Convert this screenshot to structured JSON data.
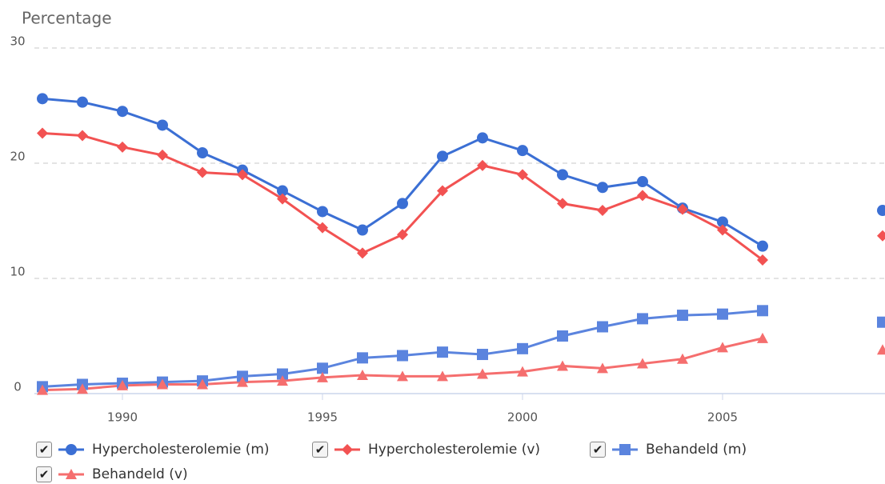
{
  "chart_data": {
    "type": "line",
    "ylabel": "Percentage",
    "x": [
      1988,
      1989,
      1990,
      1991,
      1992,
      1993,
      1994,
      1995,
      1996,
      1997,
      1998,
      1999,
      2000,
      2001,
      2002,
      2003,
      2004,
      2005,
      2006,
      2007,
      2008,
      2009
    ],
    "xlim": [
      1987.8,
      2009
    ],
    "xticks": [
      1990,
      1995,
      2000,
      2005
    ],
    "ylim": [
      0,
      30
    ],
    "yticks": [
      0,
      10,
      20,
      30
    ],
    "grid": true,
    "series": [
      {
        "name": "Hypercholesterolemie (m)",
        "color": "#3b6fd4",
        "marker": "circle",
        "values": [
          25.6,
          25.3,
          24.5,
          23.3,
          20.9,
          19.4,
          17.6,
          15.8,
          14.2,
          16.5,
          20.6,
          22.2,
          21.1,
          19.0,
          17.9,
          18.4,
          16.1,
          14.9,
          12.8,
          null,
          null,
          15.9
        ]
      },
      {
        "name": "Hypercholesterolemie (v)",
        "color": "#f25252",
        "marker": "diamond",
        "values": [
          22.6,
          22.4,
          21.4,
          20.7,
          19.2,
          19.0,
          16.9,
          14.4,
          12.2,
          13.8,
          17.6,
          19.8,
          19.0,
          16.5,
          15.9,
          17.2,
          16.0,
          14.2,
          11.6,
          null,
          null,
          13.7
        ]
      },
      {
        "name": "Behandeld (m)",
        "color": "#5b84de",
        "marker": "square",
        "values": [
          0.6,
          0.8,
          0.9,
          1.0,
          1.1,
          1.5,
          1.7,
          2.2,
          3.1,
          3.3,
          3.6,
          3.4,
          3.9,
          5.0,
          5.8,
          6.5,
          6.8,
          6.9,
          7.2,
          null,
          null,
          6.2
        ]
      },
      {
        "name": "Behandeld (v)",
        "color": "#f56e6e",
        "marker": "triangle",
        "values": [
          0.3,
          0.4,
          0.7,
          0.8,
          0.8,
          1.0,
          1.1,
          1.4,
          1.6,
          1.5,
          1.5,
          1.7,
          1.9,
          2.4,
          2.2,
          2.6,
          3.0,
          4.0,
          4.8,
          null,
          null,
          3.8
        ]
      }
    ]
  }
}
